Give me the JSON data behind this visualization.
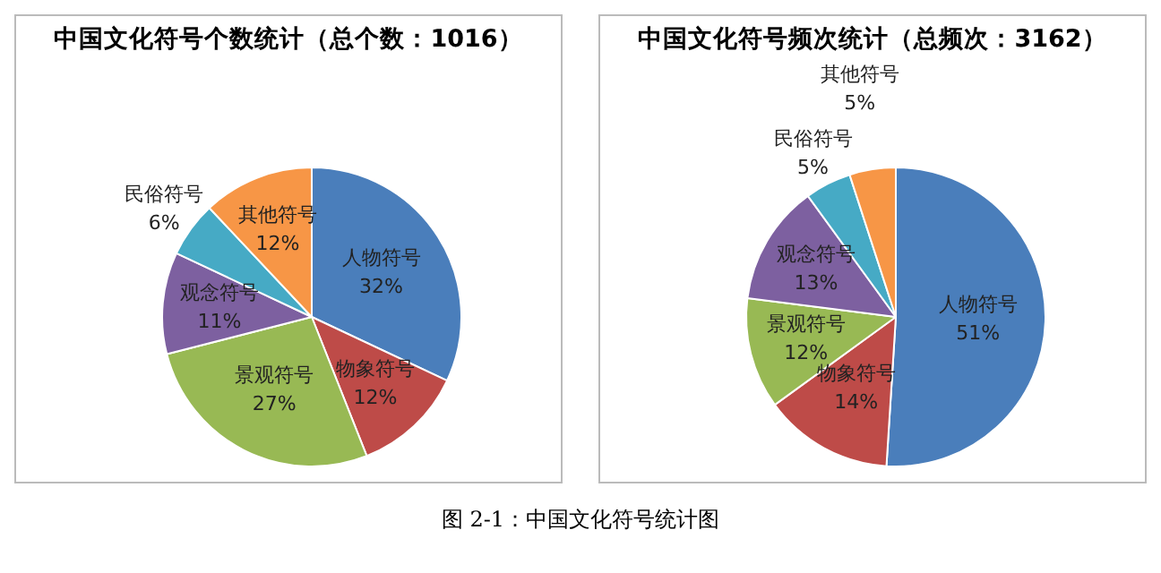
{
  "chart_data": [
    {
      "type": "pie",
      "title": "中国文化符号个数统计（总个数：1016）",
      "categories": [
        "人物符号",
        "物象符号",
        "景观符号",
        "观念符号",
        "民俗符号",
        "其他符号"
      ],
      "values": [
        32,
        12,
        27,
        11,
        6,
        12
      ],
      "value_labels": [
        "32%",
        "12%",
        "27%",
        "11%",
        "6%",
        "12%"
      ],
      "colors": [
        "#4a7ebb",
        "#be4b48",
        "#98b954",
        "#7d60a0",
        "#46aac5",
        "#f79646"
      ],
      "legend": false
    },
    {
      "type": "pie",
      "title": "中国文化符号频次统计（总频次：3162）",
      "categories": [
        "人物符号",
        "物象符号",
        "景观符号",
        "观念符号",
        "民俗符号",
        "其他符号"
      ],
      "values": [
        51,
        14,
        12,
        13,
        5,
        5
      ],
      "value_labels": [
        "51%",
        "14%",
        "12%",
        "13%",
        "5%",
        "5%"
      ],
      "colors": [
        "#4a7ebb",
        "#be4b48",
        "#98b954",
        "#7d60a0",
        "#46aac5",
        "#f79646"
      ],
      "legend": false,
      "annotations": [
        "图 2-1：中国文化符号统计图"
      ]
    }
  ]
}
